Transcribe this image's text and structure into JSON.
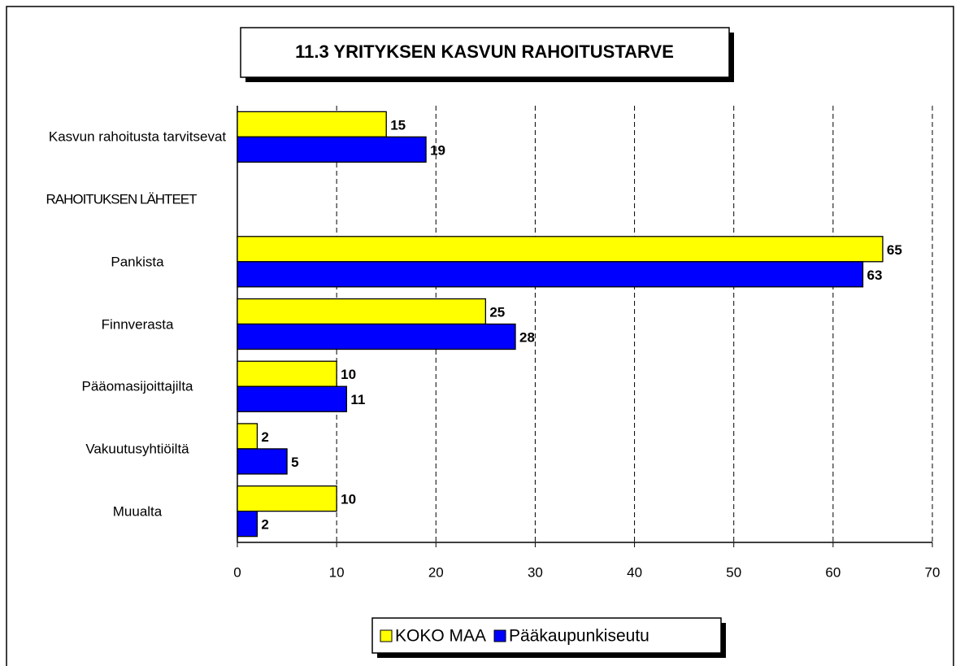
{
  "chart_data": {
    "type": "bar",
    "orientation": "horizontal",
    "title": "11.3 YRITYKSEN KASVUN RAHOITUSTARVE",
    "categories": [
      "Kasvun rahoitusta tarvitsevat",
      "RAHOITUKSEN LÄHTEET",
      "Pankista",
      "Finnverasta",
      "Pääomasijoittajilta",
      "Vakuutusyhtiöiltä",
      "Muualta"
    ],
    "series": [
      {
        "name": "KOKO MAA",
        "color": "#ffff00",
        "values": [
          15,
          null,
          65,
          25,
          10,
          2,
          10
        ]
      },
      {
        "name": "Pääkaupunkiseutu",
        "color": "#0000ff",
        "values": [
          19,
          null,
          63,
          28,
          11,
          5,
          2
        ]
      }
    ],
    "xlim": [
      0,
      70
    ],
    "xticks": [
      0,
      10,
      20,
      30,
      40,
      50,
      60,
      70
    ],
    "grid": true,
    "legend": "bottom"
  }
}
